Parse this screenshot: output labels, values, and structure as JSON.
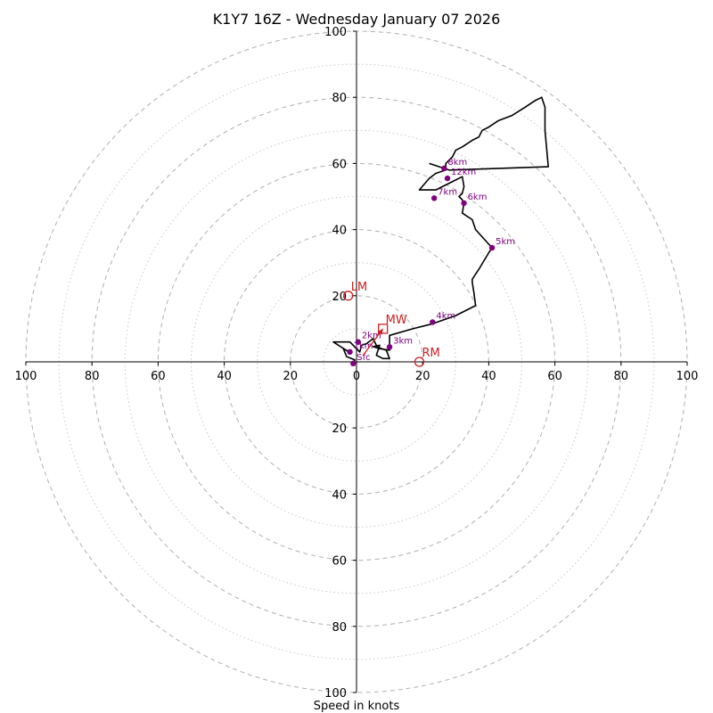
{
  "chart_data": {
    "type": "hodograph",
    "title": "K1Y7 16Z - Wednesday January 07 2026",
    "xlabel": "Speed in knots",
    "max_speed": 100,
    "ring_major": [
      20,
      40,
      60,
      80,
      100
    ],
    "ring_minor": [
      10,
      30,
      50,
      70,
      90
    ],
    "x_ticks": [
      {
        "value": -100,
        "label": "100"
      },
      {
        "value": -80,
        "label": "80"
      },
      {
        "value": -60,
        "label": "60"
      },
      {
        "value": -40,
        "label": "40"
      },
      {
        "value": -20,
        "label": "20"
      },
      {
        "value": 0,
        "label": "0"
      },
      {
        "value": 20,
        "label": "20"
      },
      {
        "value": 40,
        "label": "40"
      },
      {
        "value": 60,
        "label": "60"
      },
      {
        "value": 80,
        "label": "80"
      },
      {
        "value": 100,
        "label": "100"
      }
    ],
    "y_ticks": [
      {
        "value": 100,
        "label": "100"
      },
      {
        "value": 80,
        "label": "80"
      },
      {
        "value": 60,
        "label": "60"
      },
      {
        "value": 40,
        "label": "40"
      },
      {
        "value": 20,
        "label": "20"
      },
      {
        "value": -20,
        "label": "20"
      },
      {
        "value": -40,
        "label": "40"
      },
      {
        "value": -60,
        "label": "60"
      },
      {
        "value": -80,
        "label": "80"
      },
      {
        "value": -100,
        "label": "100"
      }
    ],
    "hodograph_line": [
      [
        -1,
        -0.5
      ],
      [
        -0.5,
        0.6
      ],
      [
        -3,
        1.6
      ],
      [
        -4,
        4
      ],
      [
        -2,
        2.8
      ],
      [
        -7,
        6
      ],
      [
        -2,
        6
      ],
      [
        1,
        3
      ],
      [
        1.5,
        5
      ],
      [
        3,
        5.5
      ],
      [
        5,
        7
      ],
      [
        6,
        5
      ],
      [
        6.5,
        4.4
      ],
      [
        9,
        3.5
      ],
      [
        10,
        1
      ],
      [
        8,
        1
      ],
      [
        6,
        2
      ],
      [
        7,
        5
      ],
      [
        5,
        4.6
      ],
      [
        7,
        4
      ],
      [
        10,
        3.5
      ],
      [
        10,
        8
      ],
      [
        17,
        10
      ],
      [
        23,
        11.5
      ],
      [
        30,
        14
      ],
      [
        36,
        17
      ],
      [
        35.5,
        21
      ],
      [
        35,
        24
      ],
      [
        35,
        25
      ],
      [
        37,
        28
      ],
      [
        40,
        33
      ],
      [
        41,
        34.5
      ],
      [
        36,
        40
      ],
      [
        35,
        43
      ],
      [
        32,
        45
      ],
      [
        32.5,
        48
      ],
      [
        32,
        49
      ],
      [
        31,
        50
      ],
      [
        32,
        51
      ],
      [
        32.5,
        53
      ],
      [
        32,
        56
      ],
      [
        24,
        52
      ],
      [
        19,
        52
      ],
      [
        22,
        55.5
      ],
      [
        24,
        57
      ],
      [
        27,
        58
      ],
      [
        27,
        60
      ],
      [
        28,
        61
      ],
      [
        29,
        62
      ],
      [
        30,
        64
      ],
      [
        32,
        65
      ],
      [
        35,
        67
      ],
      [
        37,
        68
      ],
      [
        38,
        70
      ],
      [
        40,
        71
      ],
      [
        43,
        73
      ],
      [
        47,
        74.5
      ],
      [
        51,
        77
      ],
      [
        54,
        79
      ],
      [
        56,
        80
      ],
      [
        57,
        77
      ],
      [
        57,
        73
      ],
      [
        57,
        70
      ],
      [
        58,
        59
      ],
      [
        28,
        58
      ],
      [
        22,
        60
      ]
    ],
    "height_points": [
      {
        "label": "Sfc",
        "u": -1,
        "v": -0.5
      },
      {
        "label": "1km",
        "u": -2,
        "v": 3
      },
      {
        "label": "2km",
        "u": 0.5,
        "v": 6
      },
      {
        "label": "3km",
        "u": 10,
        "v": 4.5
      },
      {
        "label": "4km",
        "u": 23,
        "v": 12
      },
      {
        "label": "5km",
        "u": 41,
        "v": 34.5
      },
      {
        "label": "6km",
        "u": 32.5,
        "v": 48
      },
      {
        "label": "7km",
        "u": 23.5,
        "v": 49.5
      },
      {
        "label": "8km",
        "u": 26.5,
        "v": 58.5
      },
      {
        "label": "12km",
        "u": 27.5,
        "v": 55.5
      }
    ],
    "height_color": "#800080",
    "line_color": "#000000",
    "marker_color": "#cc2020",
    "motion_markers": [
      {
        "label": "LM",
        "u": -2.5,
        "v": 20,
        "shape": "circle"
      },
      {
        "label": "RM",
        "u": 19,
        "v": 0,
        "shape": "circle"
      },
      {
        "label": "MW",
        "u": 8,
        "v": 10,
        "shape": "square"
      }
    ],
    "motion_arrow": {
      "from_u": 2,
      "from_v": 2,
      "to_u": 8,
      "to_v": 10
    }
  }
}
